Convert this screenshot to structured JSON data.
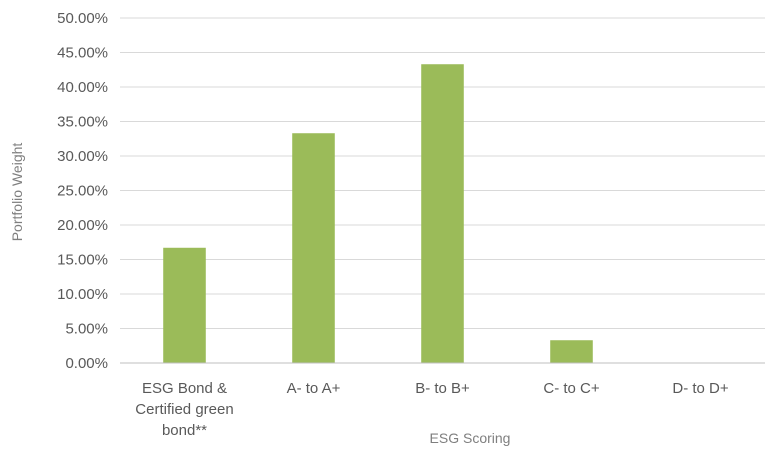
{
  "chart_data": {
    "type": "bar",
    "title": "",
    "xlabel": "ESG Scoring",
    "ylabel": "Portfolio Weight",
    "categories": [
      [
        "ESG Bond &",
        "Certified green",
        "bond**"
      ],
      [
        "A- to A+"
      ],
      [
        "B- to B+"
      ],
      [
        "C- to C+"
      ],
      [
        "D- to D+"
      ]
    ],
    "values": [
      16.7,
      33.3,
      43.3,
      3.3,
      0.0
    ],
    "value_format": "percent",
    "ylim": [
      0,
      50
    ],
    "yticks": [
      0,
      5,
      10,
      15,
      20,
      25,
      30,
      35,
      40,
      45,
      50
    ],
    "ytick_labels": [
      "0.00%",
      "5.00%",
      "10.00%",
      "15.00%",
      "20.00%",
      "25.00%",
      "30.00%",
      "35.00%",
      "40.00%",
      "45.00%",
      "50.00%"
    ],
    "grid": true,
    "legend": "none",
    "colors": {
      "bar": "#9bbb59",
      "grid": "#d9d9d9",
      "axis": "#bfbfbf"
    }
  }
}
